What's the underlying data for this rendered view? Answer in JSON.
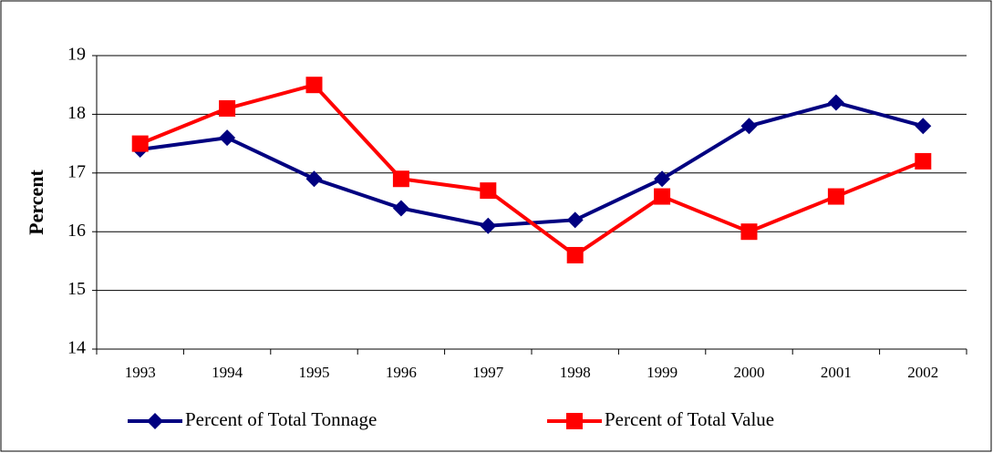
{
  "chart_data": {
    "type": "line",
    "y_label": "Percent",
    "categories": [
      "1993",
      "1994",
      "1995",
      "1996",
      "1997",
      "1998",
      "1999",
      "2000",
      "2001",
      "2002"
    ],
    "series": [
      {
        "name": "Percent of Total Tonnage",
        "color": "#000080",
        "marker": "diamond",
        "values": [
          17.4,
          17.6,
          16.9,
          16.4,
          16.1,
          16.2,
          16.9,
          17.8,
          18.2,
          17.8
        ]
      },
      {
        "name": "Percent of Total Value",
        "color": "#ff0000",
        "marker": "square",
        "values": [
          17.5,
          18.1,
          18.5,
          16.9,
          16.7,
          15.6,
          16.6,
          16.0,
          16.6,
          17.2
        ]
      }
    ],
    "ylim": [
      14,
      19
    ],
    "yticks": [
      14,
      15,
      16,
      17,
      18,
      19
    ],
    "grid": true
  }
}
